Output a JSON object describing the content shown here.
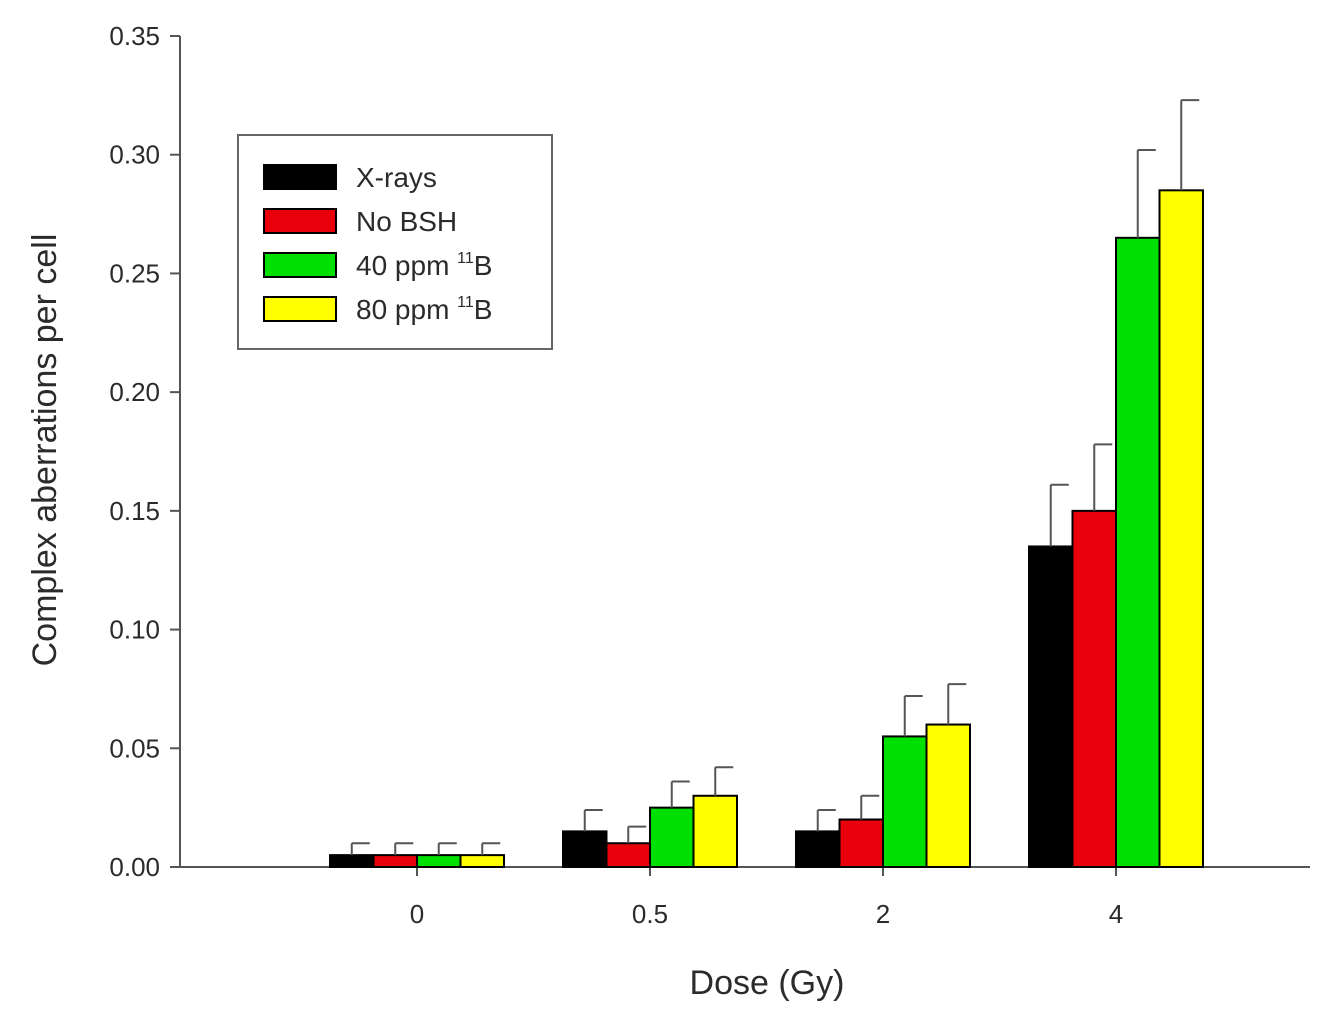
{
  "chart_data": {
    "type": "bar",
    "title": "",
    "xlabel": "Dose (Gy)",
    "ylabel": "Complex aberrations per cell",
    "categories": [
      "0",
      "0.5",
      "2",
      "4"
    ],
    "ylim": [
      0,
      0.35
    ],
    "yticks": [
      "0.00",
      "0.05",
      "0.10",
      "0.15",
      "0.20",
      "0.25",
      "0.30",
      "0.35"
    ],
    "grid": false,
    "legend_position": "top-left",
    "series": [
      {
        "name": "X-rays",
        "name_main": "X-rays",
        "name_sup": "",
        "name_tail": "",
        "color": "#000000",
        "values": [
          0.005,
          0.015,
          0.015,
          0.135
        ],
        "errors": [
          0.005,
          0.009,
          0.009,
          0.026
        ]
      },
      {
        "name": "No BSH",
        "name_main": "No BSH",
        "name_sup": "",
        "name_tail": "",
        "color": "#e8000b",
        "values": [
          0.005,
          0.01,
          0.02,
          0.15
        ],
        "errors": [
          0.005,
          0.007,
          0.01,
          0.028
        ]
      },
      {
        "name": "40 ppm 11B",
        "name_main": "40 ppm ",
        "name_sup": "11",
        "name_tail": "B",
        "color": "#00e000",
        "values": [
          0.005,
          0.025,
          0.055,
          0.265
        ],
        "errors": [
          0.005,
          0.011,
          0.017,
          0.037
        ]
      },
      {
        "name": "80 ppm 11B",
        "name_main": "80 ppm ",
        "name_sup": "11",
        "name_tail": "B",
        "color": "#ffff00",
        "values": [
          0.005,
          0.03,
          0.06,
          0.285
        ],
        "errors": [
          0.005,
          0.012,
          0.017,
          0.038
        ]
      }
    ]
  }
}
